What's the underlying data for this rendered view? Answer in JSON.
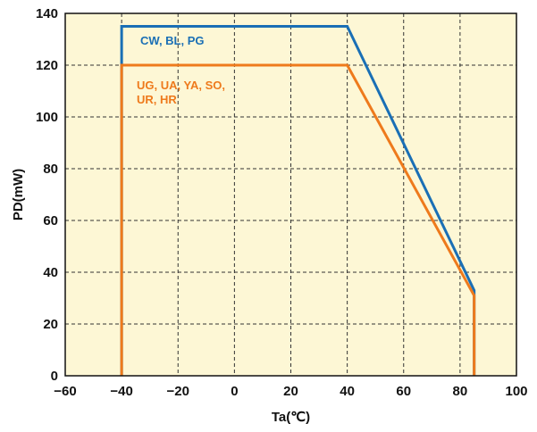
{
  "chart_data": {
    "type": "line",
    "title": "",
    "xlabel": "Ta(℃)",
    "ylabel": "PD(mW)",
    "xlim": [
      -60,
      100
    ],
    "ylim": [
      0,
      140
    ],
    "xticks": [
      -60,
      -40,
      -20,
      0,
      20,
      40,
      60,
      80,
      100
    ],
    "yticks": [
      0,
      20,
      40,
      60,
      80,
      100,
      120,
      140
    ],
    "xtick_labels": [
      "−60",
      "−40",
      "−20",
      "0",
      "20",
      "40",
      "60",
      "80",
      "100"
    ],
    "ytick_labels": [
      "0",
      "20",
      "40",
      "60",
      "80",
      "100",
      "120",
      "140"
    ],
    "grid": true,
    "series": [
      {
        "name": "CW, BL, PG",
        "color": "#1a6fb5",
        "x": [
          -40,
          -40,
          40,
          85,
          85
        ],
        "y": [
          0,
          135,
          135,
          33,
          0
        ]
      },
      {
        "name": "UG, UA, YA, SO, UR, HR",
        "label_lines": [
          "UG, UA, YA, SO,",
          "UR, HR"
        ],
        "color": "#ee7a1c",
        "x": [
          -40,
          -40,
          40,
          85,
          85
        ],
        "y": [
          0,
          120,
          120,
          31,
          0
        ]
      }
    ]
  },
  "colors": {
    "plot_background": "#fdf7d5",
    "grid": "#333333",
    "frame": "#111111"
  }
}
